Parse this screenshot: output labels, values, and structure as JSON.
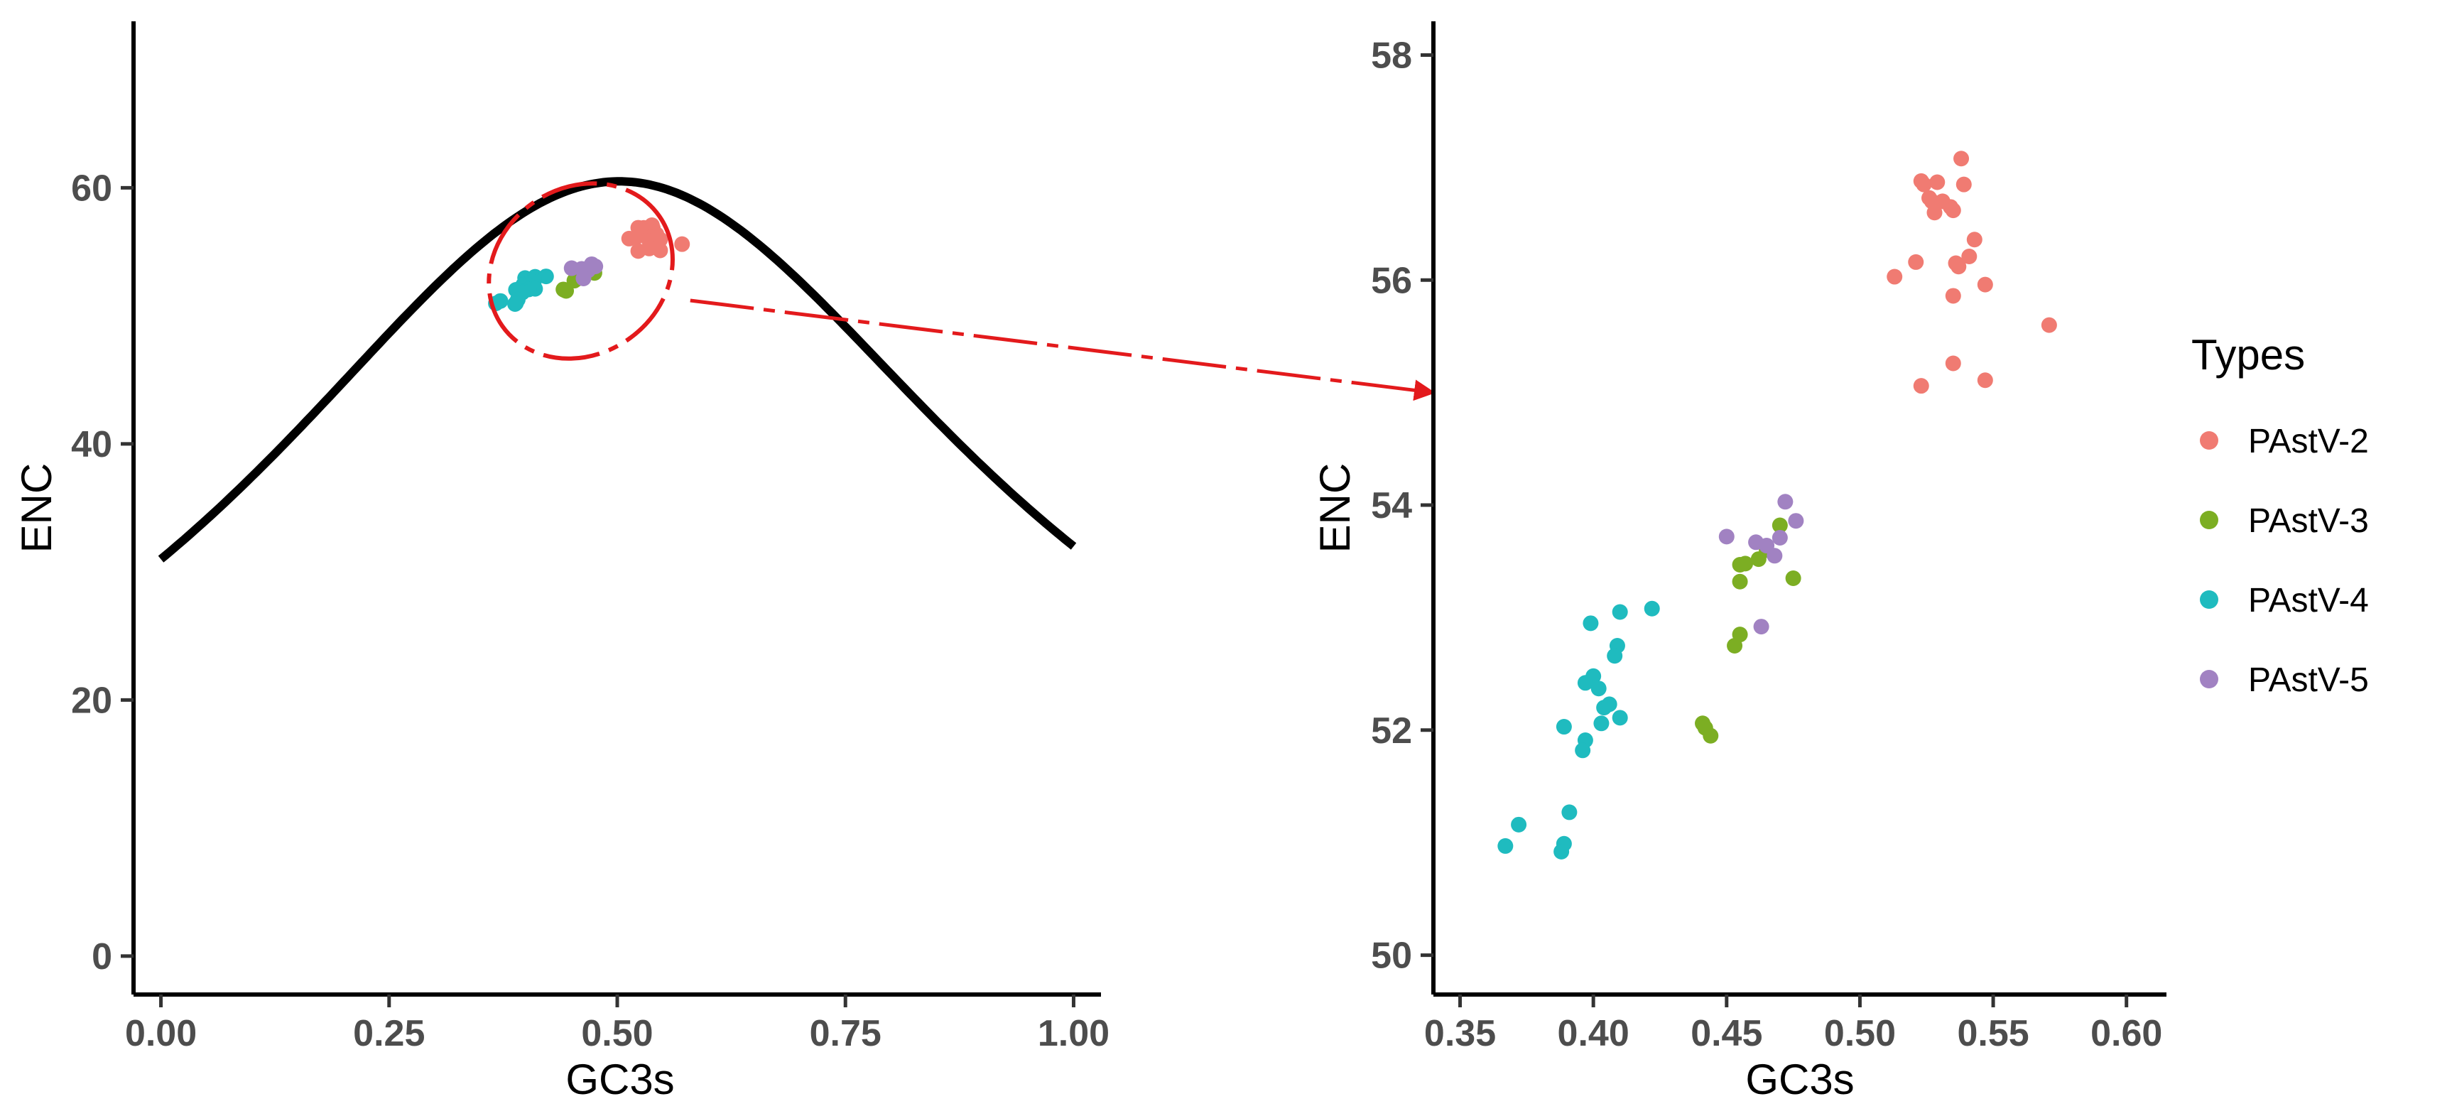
{
  "colors": {
    "PAstV-2": "#F07B72",
    "PAstV-3": "#7CAE23",
    "PAstV-4": "#1FBBBF",
    "PAstV-5": "#A182C2",
    "curve": "#000000",
    "ellipse": "#E31A1C",
    "arrow": "#E31A1C"
  },
  "legend": {
    "title": "Types",
    "items": [
      "PAstV-2",
      "PAstV-3",
      "PAstV-4",
      "PAstV-5"
    ]
  },
  "chart_data": [
    {
      "type": "scatter",
      "title": "",
      "xlabel": "GC3s",
      "ylabel": "ENC",
      "xlim": [
        -0.03,
        1.03
      ],
      "ylim": [
        -3,
        73
      ],
      "xticks": [
        "0.00",
        "0.25",
        "0.50",
        "0.75",
        "1.00"
      ],
      "yticks": [
        "0",
        "20",
        "40",
        "60"
      ],
      "grid": false,
      "curve": {
        "name": "expected ENC",
        "formula": "2 + s + 29/(s^2 + (1-s)^2)",
        "x_range": [
          0,
          1
        ]
      },
      "ellipse": {
        "cx": 0.46,
        "cy": 53.5,
        "rx": 0.105,
        "ry": 6.5,
        "angle": -35,
        "style": "dashed"
      },
      "arrow": {
        "from": [
          0.58,
          51.2
        ],
        "to_panel": 2,
        "to": [
          0.34,
          55.0
        ]
      },
      "series": [
        {
          "name": "PAstV-2",
          "x": [
            0.523,
            0.524,
            0.529,
            0.531,
            0.534,
            0.538,
            0.539,
            0.526,
            0.527,
            0.528,
            0.535,
            0.541,
            0.543,
            0.536,
            0.537,
            0.547,
            0.513,
            0.521,
            0.535,
            0.523,
            0.535,
            0.547,
            0.571
          ],
          "y": [
            56.88,
            56.85,
            56.87,
            56.7,
            56.65,
            57.08,
            56.85,
            56.73,
            56.7,
            56.6,
            56.62,
            56.21,
            56.36,
            56.15,
            56.12,
            55.96,
            56.03,
            56.16,
            55.86,
            55.06,
            55.26,
            55.11,
            55.6
          ]
        },
        {
          "name": "PAstV-3",
          "x": [
            0.455,
            0.457,
            0.462,
            0.465,
            0.47,
            0.475,
            0.455,
            0.455,
            0.453,
            0.441,
            0.442,
            0.444
          ],
          "y": [
            53.47,
            53.48,
            53.52,
            53.6,
            53.82,
            53.35,
            53.32,
            52.85,
            52.75,
            52.06,
            52.02,
            51.95
          ]
        },
        {
          "name": "PAstV-4",
          "x": [
            0.399,
            0.41,
            0.422,
            0.409,
            0.408,
            0.4,
            0.397,
            0.402,
            0.404,
            0.406,
            0.41,
            0.403,
            0.389,
            0.397,
            0.396,
            0.391,
            0.372,
            0.367,
            0.389,
            0.388
          ],
          "y": [
            52.95,
            53.05,
            53.08,
            52.75,
            52.66,
            52.48,
            52.42,
            52.37,
            52.2,
            52.23,
            52.11,
            52.06,
            52.03,
            51.91,
            51.82,
            51.27,
            51.16,
            50.97,
            50.99,
            50.92
          ]
        },
        {
          "name": "PAstV-5",
          "x": [
            0.472,
            0.476,
            0.45,
            0.461,
            0.465,
            0.47,
            0.468,
            0.463
          ],
          "y": [
            54.03,
            53.86,
            53.72,
            53.67,
            53.64,
            53.71,
            53.55,
            52.92
          ]
        }
      ]
    },
    {
      "type": "scatter",
      "title": "",
      "xlabel": "GC3s",
      "ylabel": "ENC",
      "xlim": [
        0.34,
        0.615
      ],
      "ylim": [
        49.65,
        58.3
      ],
      "xticks": [
        "0.35",
        "0.40",
        "0.45",
        "0.50",
        "0.55",
        "0.60"
      ],
      "yticks": [
        "50",
        "52",
        "54",
        "56",
        "58"
      ],
      "grid": false,
      "series_ref": "same as panel 1 points"
    }
  ]
}
